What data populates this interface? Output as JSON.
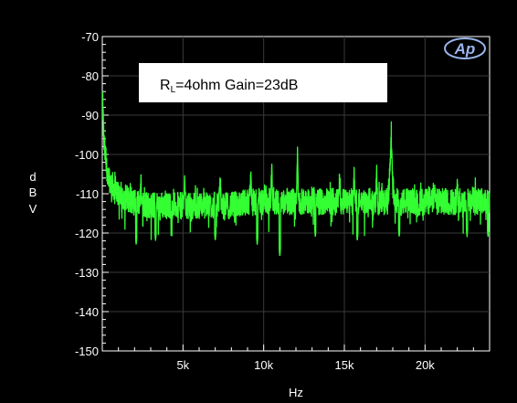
{
  "chart_data": {
    "type": "line",
    "title": "",
    "xlabel": "Hz",
    "ylabel": "dBV",
    "ylabel_letters": [
      "d",
      "B",
      "V"
    ],
    "xlim": [
      0,
      24000
    ],
    "ylim": [
      -150,
      -70
    ],
    "y_ticks": [
      -70,
      -80,
      -90,
      -100,
      -110,
      -120,
      -130,
      -140,
      -150
    ],
    "y_tick_labels": [
      "-70",
      "-80",
      "-90",
      "-100",
      "-110",
      "-120",
      "-130",
      "-140",
      "-150"
    ],
    "x_ticks": [
      5000,
      10000,
      15000,
      20000
    ],
    "x_tick_labels": [
      "5k",
      "10k",
      "15k",
      "20k"
    ],
    "grid": true,
    "annotation": {
      "prefix": "R",
      "subscript": "L",
      "text": "=4ohm Gain=23dB"
    },
    "logo_text": "Ap",
    "series": [
      {
        "color": "#33ff33",
        "noise_floor": -113,
        "points": [
          {
            "x": 20,
            "y": -86
          },
          {
            "x": 100,
            "y": -97
          },
          {
            "x": 250,
            "y": -103
          },
          {
            "x": 500,
            "y": -107
          },
          {
            "x": 1000,
            "y": -110
          },
          {
            "x": 2000,
            "y": -112
          },
          {
            "x": 3000,
            "y": -113
          },
          {
            "x": 4000,
            "y": -113
          },
          {
            "x": 5000,
            "y": -113
          },
          {
            "x": 6000,
            "y": -113
          },
          {
            "x": 7000,
            "y": -113
          },
          {
            "x": 8000,
            "y": -113
          },
          {
            "x": 9000,
            "y": -112
          },
          {
            "x": 10000,
            "y": -112
          },
          {
            "x": 11000,
            "y": -112
          },
          {
            "x": 12000,
            "y": -112
          },
          {
            "x": 13000,
            "y": -112
          },
          {
            "x": 14000,
            "y": -112
          },
          {
            "x": 15000,
            "y": -112
          },
          {
            "x": 16000,
            "y": -112
          },
          {
            "x": 17000,
            "y": -112
          },
          {
            "x": 18000,
            "y": -112
          },
          {
            "x": 19000,
            "y": -112
          },
          {
            "x": 20000,
            "y": -112
          },
          {
            "x": 21000,
            "y": -112
          },
          {
            "x": 22000,
            "y": -112
          },
          {
            "x": 23000,
            "y": -112
          },
          {
            "x": 24000,
            "y": -112
          }
        ],
        "peaks": [
          {
            "x": 2400,
            "y": -104
          },
          {
            "x": 5100,
            "y": -104
          },
          {
            "x": 7300,
            "y": -103
          },
          {
            "x": 9200,
            "y": -103
          },
          {
            "x": 10500,
            "y": -100
          },
          {
            "x": 12100,
            "y": -97
          },
          {
            "x": 14700,
            "y": -103
          },
          {
            "x": 15600,
            "y": -101
          },
          {
            "x": 17000,
            "y": -101
          },
          {
            "x": 17900,
            "y": -91
          },
          {
            "x": 20600,
            "y": -106
          },
          {
            "x": 22000,
            "y": -106
          },
          {
            "x": 23900,
            "y": -107
          }
        ],
        "dips": [
          {
            "x": 2100,
            "y": -123
          },
          {
            "x": 3300,
            "y": -122
          },
          {
            "x": 7000,
            "y": -122
          },
          {
            "x": 9600,
            "y": -123
          },
          {
            "x": 11000,
            "y": -126
          },
          {
            "x": 13200,
            "y": -121
          },
          {
            "x": 15800,
            "y": -122
          },
          {
            "x": 18400,
            "y": -121
          },
          {
            "x": 22600,
            "y": -121
          },
          {
            "x": 23900,
            "y": -121
          }
        ]
      }
    ]
  }
}
